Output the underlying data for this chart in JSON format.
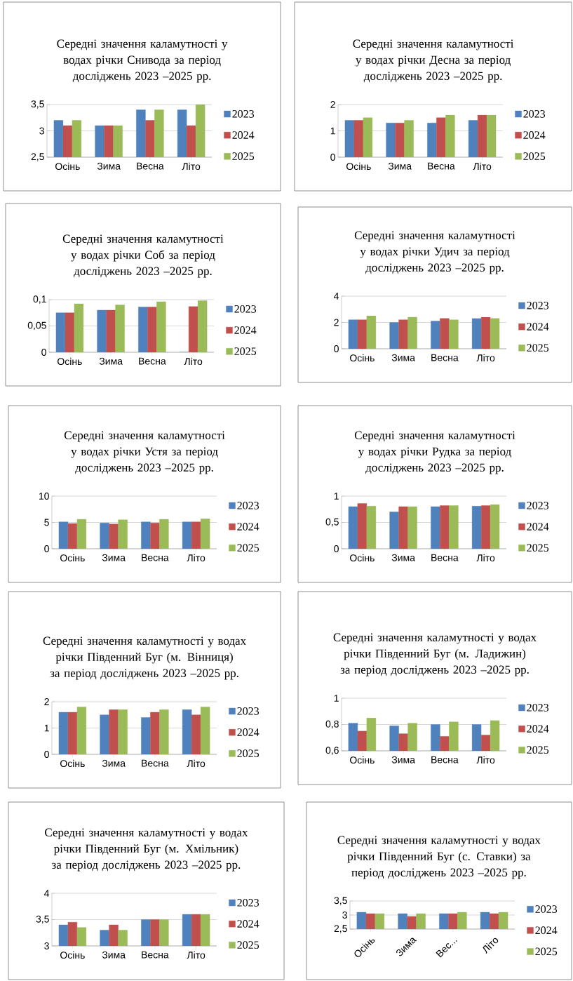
{
  "chart_data": [
    {
      "type": "bar",
      "title": "Середні значення каламутності у водах річки Снивода за період досліджень 2023 –2025 рр.",
      "categories": [
        "Осінь",
        "Зима",
        "Весна",
        "Літо"
      ],
      "series": [
        {
          "name": "2023",
          "color": "#4f81bd",
          "values": [
            3.2,
            3.1,
            3.4,
            3.4
          ]
        },
        {
          "name": "2024",
          "color": "#c0504d",
          "values": [
            3.1,
            3.1,
            3.2,
            3.1
          ]
        },
        {
          "name": "2025",
          "color": "#9bbb59",
          "values": [
            3.2,
            3.1,
            3.4,
            3.5
          ]
        }
      ],
      "ylim": [
        2.5,
        3.5
      ],
      "yticks": [
        {
          "value": 2.5,
          "label": "2,5"
        },
        3,
        {
          "value": 3.5,
          "label": "3,5"
        }
      ],
      "grid": "y",
      "legend": "right"
    },
    {
      "type": "bar",
      "title": "Середні значення каламутності у водах річки Десна за період досліджень 2023 –2025 рр.",
      "categories": [
        "Осінь",
        "Зима",
        "Весна",
        "Літо"
      ],
      "series": [
        {
          "name": "2023",
          "color": "#4f81bd",
          "values": [
            1.4,
            1.3,
            1.3,
            1.4
          ]
        },
        {
          "name": "2024",
          "color": "#c0504d",
          "values": [
            1.4,
            1.3,
            1.5,
            1.6
          ]
        },
        {
          "name": "2025",
          "color": "#9bbb59",
          "values": [
            1.5,
            1.4,
            1.6,
            1.6
          ]
        }
      ],
      "ylim": [
        0,
        2
      ],
      "yticks": [
        0,
        1,
        2
      ],
      "grid": "y",
      "legend": "right"
    },
    {
      "type": "bar",
      "title": "Середні значення каламутності у водах річки Соб за період досліджень 2023 –2025 рр.",
      "categories": [
        "Осінь",
        "Зима",
        "Весна",
        "Літо"
      ],
      "series": [
        {
          "name": "2023",
          "color": "#4f81bd",
          "values": [
            0.075,
            0.08,
            0.086,
            0
          ]
        },
        {
          "name": "2024",
          "color": "#c0504d",
          "values": [
            0.075,
            0.08,
            0.086,
            0.087
          ]
        },
        {
          "name": "2025",
          "color": "#9bbb59",
          "values": [
            0.092,
            0.09,
            0.096,
            0.098
          ]
        }
      ],
      "ylim": [
        0,
        0.1
      ],
      "yticks": [
        0,
        {
          "value": 0.05,
          "label": "0,05"
        },
        {
          "value": 0.1,
          "label": "0,1"
        }
      ],
      "grid": "y",
      "legend": "right"
    },
    {
      "type": "bar",
      "title": "Середні значення каламутності у водах річки Удич за період досліджень 2023 –2025 рр.",
      "categories": [
        "Осінь",
        "Зима",
        "Весна",
        "Літо"
      ],
      "series": [
        {
          "name": "2023",
          "color": "#4f81bd",
          "values": [
            2.2,
            2.0,
            2.1,
            2.3
          ]
        },
        {
          "name": "2024",
          "color": "#c0504d",
          "values": [
            2.2,
            2.2,
            2.3,
            2.4
          ]
        },
        {
          "name": "2025",
          "color": "#9bbb59",
          "values": [
            2.5,
            2.4,
            2.2,
            2.3
          ]
        }
      ],
      "ylim": [
        0,
        4
      ],
      "yticks": [
        0,
        2,
        4
      ],
      "grid": "y",
      "legend": "right"
    },
    {
      "type": "bar",
      "title": "Середні значення каламутності у водах річки Устя за період досліджень 2023 –2025 рр.",
      "categories": [
        "Осінь",
        "Зима",
        "Весна",
        "Літо"
      ],
      "series": [
        {
          "name": "2023",
          "color": "#4f81bd",
          "values": [
            5.1,
            4.9,
            5.1,
            5.1
          ]
        },
        {
          "name": "2024",
          "color": "#c0504d",
          "values": [
            4.8,
            4.7,
            4.9,
            5.1
          ]
        },
        {
          "name": "2025",
          "color": "#9bbb59",
          "values": [
            5.6,
            5.5,
            5.6,
            5.7
          ]
        }
      ],
      "ylim": [
        0,
        10
      ],
      "yticks": [
        0,
        5,
        10
      ],
      "grid": "y",
      "legend": "right"
    },
    {
      "type": "bar",
      "title": "Середні значення каламутності у водах річки Рудка за період досліджень 2023 –2025 рр.",
      "categories": [
        "Осінь",
        "Зима",
        "Весна",
        "Літо"
      ],
      "series": [
        {
          "name": "2023",
          "color": "#4f81bd",
          "values": [
            0.8,
            0.7,
            0.8,
            0.81
          ]
        },
        {
          "name": "2024",
          "color": "#c0504d",
          "values": [
            0.86,
            0.8,
            0.82,
            0.82
          ]
        },
        {
          "name": "2025",
          "color": "#9bbb59",
          "values": [
            0.81,
            0.8,
            0.82,
            0.84
          ]
        }
      ],
      "ylim": [
        0,
        1
      ],
      "yticks": [
        0,
        {
          "value": 0.5,
          "label": "0,5"
        },
        1
      ],
      "grid": "y",
      "legend": "right"
    },
    {
      "type": "bar",
      "title": "Середні значення каламутності у водах річки Південний Буг (м. Вінниця) за період досліджень 2023 –2025 рр.",
      "categories": [
        "Осінь",
        "Зима",
        "Весна",
        "Літо"
      ],
      "series": [
        {
          "name": "2023",
          "color": "#4f81bd",
          "values": [
            1.6,
            1.5,
            1.4,
            1.7
          ]
        },
        {
          "name": "2024",
          "color": "#c0504d",
          "values": [
            1.6,
            1.7,
            1.6,
            1.5
          ]
        },
        {
          "name": "2025",
          "color": "#9bbb59",
          "values": [
            1.8,
            1.7,
            1.7,
            1.8
          ]
        }
      ],
      "ylim": [
        0,
        2
      ],
      "yticks": [
        0,
        1,
        2
      ],
      "grid": "y",
      "legend": "right"
    },
    {
      "type": "bar",
      "title": "Середні значення каламутності у водах річки Південний Буг (м. Ладижин) за період досліджень 2023 –2025 рр.",
      "categories": [
        "Осінь",
        "Зима",
        "Весна",
        "Літо"
      ],
      "series": [
        {
          "name": "2023",
          "color": "#4f81bd",
          "values": [
            0.81,
            0.79,
            0.8,
            0.8
          ]
        },
        {
          "name": "2024",
          "color": "#c0504d",
          "values": [
            0.75,
            0.73,
            0.71,
            0.72
          ]
        },
        {
          "name": "2025",
          "color": "#9bbb59",
          "values": [
            0.85,
            0.81,
            0.82,
            0.83
          ]
        }
      ],
      "ylim": [
        0.6,
        1
      ],
      "yticks": [
        {
          "value": 0.6,
          "label": "0,6"
        },
        {
          "value": 0.8,
          "label": "0,8"
        },
        1
      ],
      "grid": "y",
      "legend": "right"
    },
    {
      "type": "bar",
      "title": "Середні значення каламутності у водах річки Південний Буг (м. Хмільник) за період досліджень 2023 –2025 рр.",
      "categories": [
        "Осінь",
        "Зима",
        "Весна",
        "Літо"
      ],
      "series": [
        {
          "name": "2023",
          "color": "#4f81bd",
          "values": [
            3.4,
            3.3,
            3.5,
            3.6
          ]
        },
        {
          "name": "2024",
          "color": "#c0504d",
          "values": [
            3.45,
            3.4,
            3.5,
            3.6
          ]
        },
        {
          "name": "2025",
          "color": "#9bbb59",
          "values": [
            3.35,
            3.3,
            3.5,
            3.6
          ]
        }
      ],
      "ylim": [
        3,
        4
      ],
      "yticks": [
        3,
        {
          "value": 3.5,
          "label": "3,5"
        },
        4
      ],
      "grid": "y",
      "legend": "right"
    },
    {
      "type": "bar",
      "title": "Середні значення каламутності у водах річки Південний Буг (с. Ставки) за період досліджень 2023 –2025 рр.",
      "categories": [
        "Осінь",
        "Зима",
        "Вес...",
        "Літо"
      ],
      "series": [
        {
          "name": "2023",
          "color": "#4f81bd",
          "values": [
            3.1,
            3.05,
            3.05,
            3.1
          ]
        },
        {
          "name": "2024",
          "color": "#c0504d",
          "values": [
            3.05,
            2.95,
            3.05,
            3.05
          ]
        },
        {
          "name": "2025",
          "color": "#9bbb59",
          "values": [
            3.05,
            3.05,
            3.1,
            3.1
          ]
        }
      ],
      "ylim": [
        2.5,
        3.5
      ],
      "yticks": [
        {
          "value": 2.5,
          "label": "2,5"
        },
        3,
        {
          "value": 3.5,
          "label": "3,5"
        }
      ],
      "grid": "y",
      "legend": "right"
    }
  ]
}
